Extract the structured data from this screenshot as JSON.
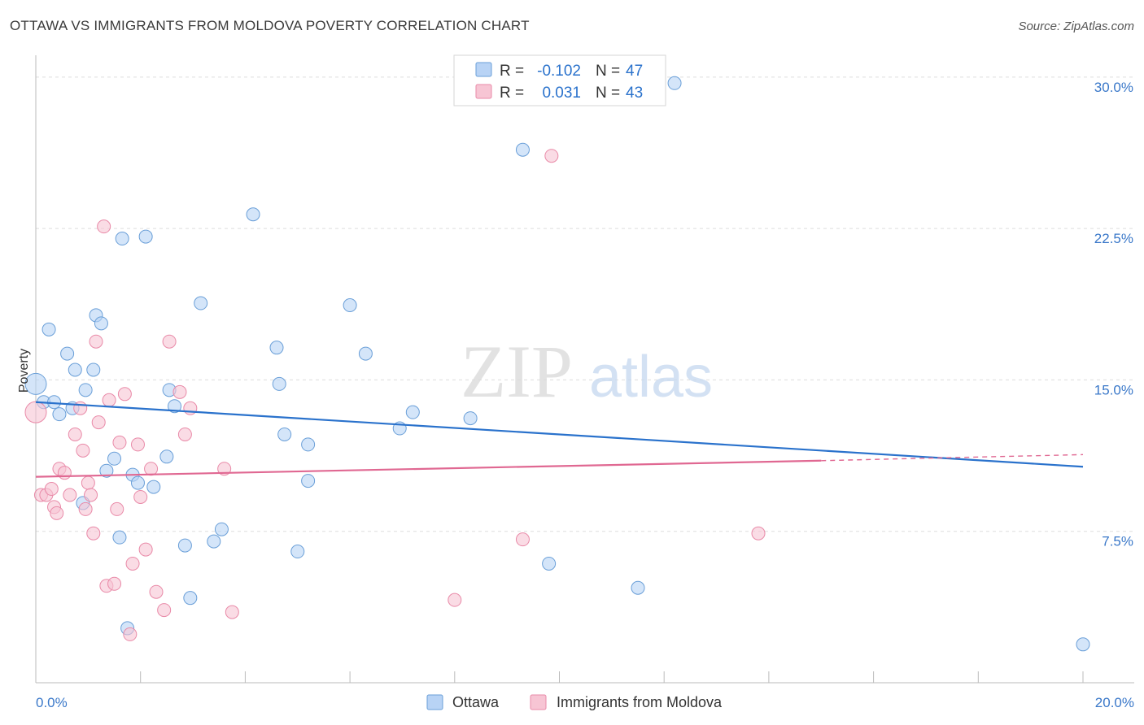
{
  "chart_data": {
    "type": "scatter",
    "title": "OTTAWA VS IMMIGRANTS FROM MOLDOVA POVERTY CORRELATION CHART",
    "source": "Source: ZipAtlas.com",
    "watermark": {
      "zip": "ZIP",
      "atlas": "atlas"
    },
    "ylabel": "Poverty",
    "xlim": [
      0,
      20
    ],
    "ylim": [
      0,
      31
    ],
    "x_tick_labels": [
      "0.0%",
      "20.0%"
    ],
    "y_ticks": [
      {
        "value": 7.5,
        "label": "7.5%"
      },
      {
        "value": 15.0,
        "label": "15.0%"
      },
      {
        "value": 22.5,
        "label": "22.5%"
      },
      {
        "value": 30.0,
        "label": "30.0%"
      }
    ],
    "x_minor_ticks": [
      2,
      4,
      6,
      8,
      10,
      12,
      14,
      16,
      18,
      20
    ],
    "grid": true,
    "legend_position": "top-center",
    "legend": [
      {
        "r_label": "R = ",
        "r_value": "-0.102",
        "n_label": "N = ",
        "n_value": "47"
      },
      {
        "r_label": "R = ",
        "r_value": "0.031",
        "n_label": "N = ",
        "n_value": "43"
      }
    ],
    "bottom_legend": [
      "Ottawa",
      "Immigrants from Moldova"
    ],
    "colors": {
      "ottawa_fill": "#b8d3f5",
      "ottawa_stroke": "#6a9fd8",
      "ottawa_line": "#2a72cc",
      "moldova_fill": "#f7c5d4",
      "moldova_stroke": "#e98aa8",
      "moldova_line": "#e06892",
      "tick_label": "#3a78c9",
      "grid": "#dddddd"
    },
    "series": [
      {
        "name": "Ottawa",
        "trend": {
          "x": [
            0,
            20
          ],
          "y": [
            13.9,
            10.7
          ]
        },
        "points": [
          [
            0.0,
            14.8
          ],
          [
            0.15,
            13.9
          ],
          [
            0.25,
            17.5
          ],
          [
            0.35,
            13.9
          ],
          [
            0.45,
            13.3
          ],
          [
            0.6,
            16.3
          ],
          [
            0.7,
            13.6
          ],
          [
            0.75,
            15.5
          ],
          [
            0.95,
            14.5
          ],
          [
            1.1,
            15.5
          ],
          [
            1.15,
            18.2
          ],
          [
            1.25,
            17.8
          ],
          [
            1.35,
            10.5
          ],
          [
            1.5,
            11.1
          ],
          [
            1.6,
            7.2
          ],
          [
            1.65,
            22.0
          ],
          [
            1.75,
            2.7
          ],
          [
            1.85,
            10.3
          ],
          [
            1.95,
            9.9
          ],
          [
            2.1,
            22.1
          ],
          [
            2.25,
            9.7
          ],
          [
            2.5,
            11.2
          ],
          [
            2.55,
            14.5
          ],
          [
            2.65,
            13.7
          ],
          [
            2.85,
            6.8
          ],
          [
            2.95,
            4.2
          ],
          [
            3.15,
            18.8
          ],
          [
            3.4,
            7.0
          ],
          [
            3.55,
            7.6
          ],
          [
            4.15,
            23.2
          ],
          [
            4.6,
            16.6
          ],
          [
            4.65,
            14.8
          ],
          [
            4.75,
            12.3
          ],
          [
            5.0,
            6.5
          ],
          [
            5.2,
            11.8
          ],
          [
            5.2,
            10.0
          ],
          [
            6.0,
            18.7
          ],
          [
            6.3,
            16.3
          ],
          [
            6.95,
            12.6
          ],
          [
            7.2,
            13.4
          ],
          [
            8.3,
            13.1
          ],
          [
            9.3,
            26.4
          ],
          [
            9.8,
            5.9
          ],
          [
            11.5,
            4.7
          ],
          [
            12.2,
            29.7
          ],
          [
            20.0,
            1.9
          ],
          [
            0.9,
            8.9
          ]
        ]
      },
      {
        "name": "Immigrants from Moldova",
        "trend": {
          "x": [
            0,
            15
          ],
          "y": [
            10.2,
            11.0
          ]
        },
        "trend_dashed": {
          "x": [
            15,
            20
          ],
          "y": [
            11.0,
            11.3
          ]
        },
        "points": [
          [
            0.0,
            13.4
          ],
          [
            0.1,
            9.3
          ],
          [
            0.2,
            9.3
          ],
          [
            0.3,
            9.6
          ],
          [
            0.35,
            8.7
          ],
          [
            0.4,
            8.4
          ],
          [
            0.45,
            10.6
          ],
          [
            0.55,
            10.4
          ],
          [
            0.65,
            9.3
          ],
          [
            0.75,
            12.3
          ],
          [
            0.85,
            13.6
          ],
          [
            0.9,
            11.5
          ],
          [
            0.95,
            8.6
          ],
          [
            1.0,
            9.9
          ],
          [
            1.05,
            9.3
          ],
          [
            1.1,
            7.4
          ],
          [
            1.15,
            16.9
          ],
          [
            1.2,
            12.9
          ],
          [
            1.3,
            22.6
          ],
          [
            1.35,
            4.8
          ],
          [
            1.4,
            14.0
          ],
          [
            1.5,
            4.9
          ],
          [
            1.55,
            8.6
          ],
          [
            1.6,
            11.9
          ],
          [
            1.7,
            14.3
          ],
          [
            1.8,
            2.4
          ],
          [
            1.85,
            5.9
          ],
          [
            1.95,
            11.8
          ],
          [
            2.0,
            9.2
          ],
          [
            2.1,
            6.6
          ],
          [
            2.2,
            10.6
          ],
          [
            2.3,
            4.5
          ],
          [
            2.45,
            3.6
          ],
          [
            2.55,
            16.9
          ],
          [
            2.75,
            14.4
          ],
          [
            2.85,
            12.3
          ],
          [
            2.95,
            13.6
          ],
          [
            3.6,
            10.6
          ],
          [
            3.75,
            3.5
          ],
          [
            8.0,
            4.1
          ],
          [
            9.3,
            7.1
          ],
          [
            9.85,
            26.1
          ],
          [
            13.8,
            7.4
          ]
        ]
      }
    ]
  }
}
